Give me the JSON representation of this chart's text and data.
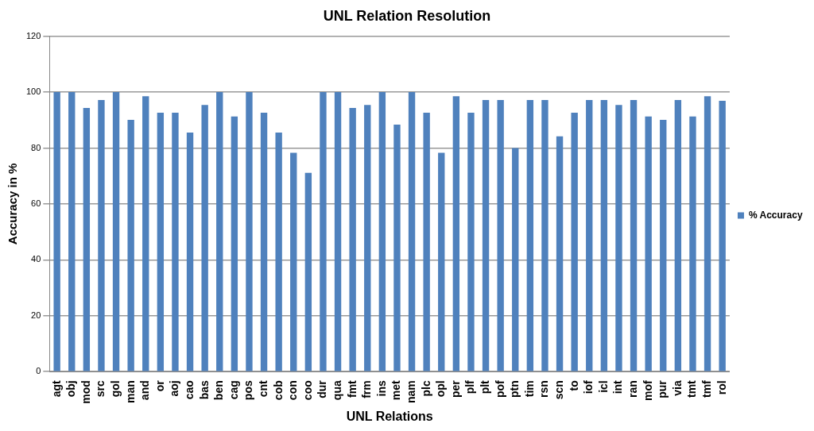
{
  "chart_data": {
    "type": "bar",
    "title": "UNL Relation Resolution",
    "xlabel": "UNL Relations",
    "ylabel": "Accuracy in %",
    "categories": [
      "agt",
      "obj",
      "mod",
      "src",
      "gol",
      "man",
      "and",
      "or",
      "aoj",
      "cao",
      "bas",
      "ben",
      "cag",
      "pos",
      "cnt",
      "cob",
      "con",
      "coo",
      "dur",
      "qua",
      "fmt",
      "frm",
      "ins",
      "met",
      "nam",
      "plc",
      "opl",
      "per",
      "plf",
      "plt",
      "pof",
      "ptn",
      "tim",
      "rsn",
      "scn",
      "to",
      "iof",
      "icl",
      "int",
      "ran",
      "mof",
      "pur",
      "via",
      "tmt",
      "tmf",
      "rol"
    ],
    "series": [
      {
        "name": "% Accuracy",
        "color": "#4f81bd",
        "values": [
          100,
          100,
          94.3,
          97.2,
          100,
          90.1,
          98.5,
          92.6,
          92.6,
          85.5,
          95.4,
          100,
          91.3,
          100,
          92.6,
          85.5,
          78.3,
          71.1,
          100,
          100,
          94.3,
          95.4,
          100,
          88.4,
          100,
          92.6,
          78.3,
          98.5,
          92.6,
          97.2,
          97.2,
          80,
          97.2,
          97.2,
          84.2,
          92.6,
          97.2,
          97.2,
          95.4,
          97.2,
          91.3,
          90.1,
          97.2,
          91.3,
          98.5,
          96.9
        ]
      }
    ],
    "ylim": [
      0,
      120
    ],
    "yticks": [
      0,
      20,
      40,
      60,
      80,
      100,
      120
    ],
    "grid": "y",
    "legend": "right"
  }
}
